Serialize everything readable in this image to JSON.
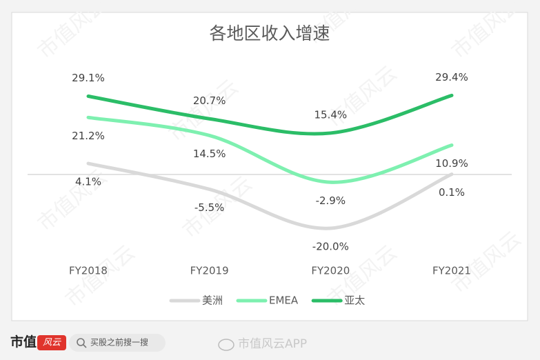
{
  "chart_data": {
    "type": "line",
    "title": "各地区收入增速",
    "categories": [
      "FY2018",
      "FY2019",
      "FY2020",
      "FY2021"
    ],
    "series": [
      {
        "name": "美洲",
        "color": "#d9d9d9",
        "values": [
          4.1,
          -5.5,
          -20.0,
          0.1
        ],
        "value_labels": [
          "4.1%",
          "-5.5%",
          "-20.0%",
          "0.1%"
        ]
      },
      {
        "name": "EMEA",
        "color": "#7ef0b0",
        "values": [
          21.2,
          14.5,
          -2.9,
          10.9
        ],
        "value_labels": [
          "21.2%",
          "14.5%",
          "-2.9%",
          "10.9%"
        ]
      },
      {
        "name": "亚太",
        "color": "#2bbd67",
        "values": [
          29.1,
          20.7,
          15.4,
          29.4
        ],
        "value_labels": [
          "29.1%",
          "20.7%",
          "15.4%",
          "29.4%"
        ]
      }
    ],
    "ylim": [
      -30,
      40
    ],
    "smooth": true,
    "legend": "bottom"
  },
  "watermark": "市值风云",
  "footer": {
    "brand": "市值",
    "brand_mark": "风云",
    "search": "买股之前搜一搜",
    "app": "市值风云APP"
  }
}
